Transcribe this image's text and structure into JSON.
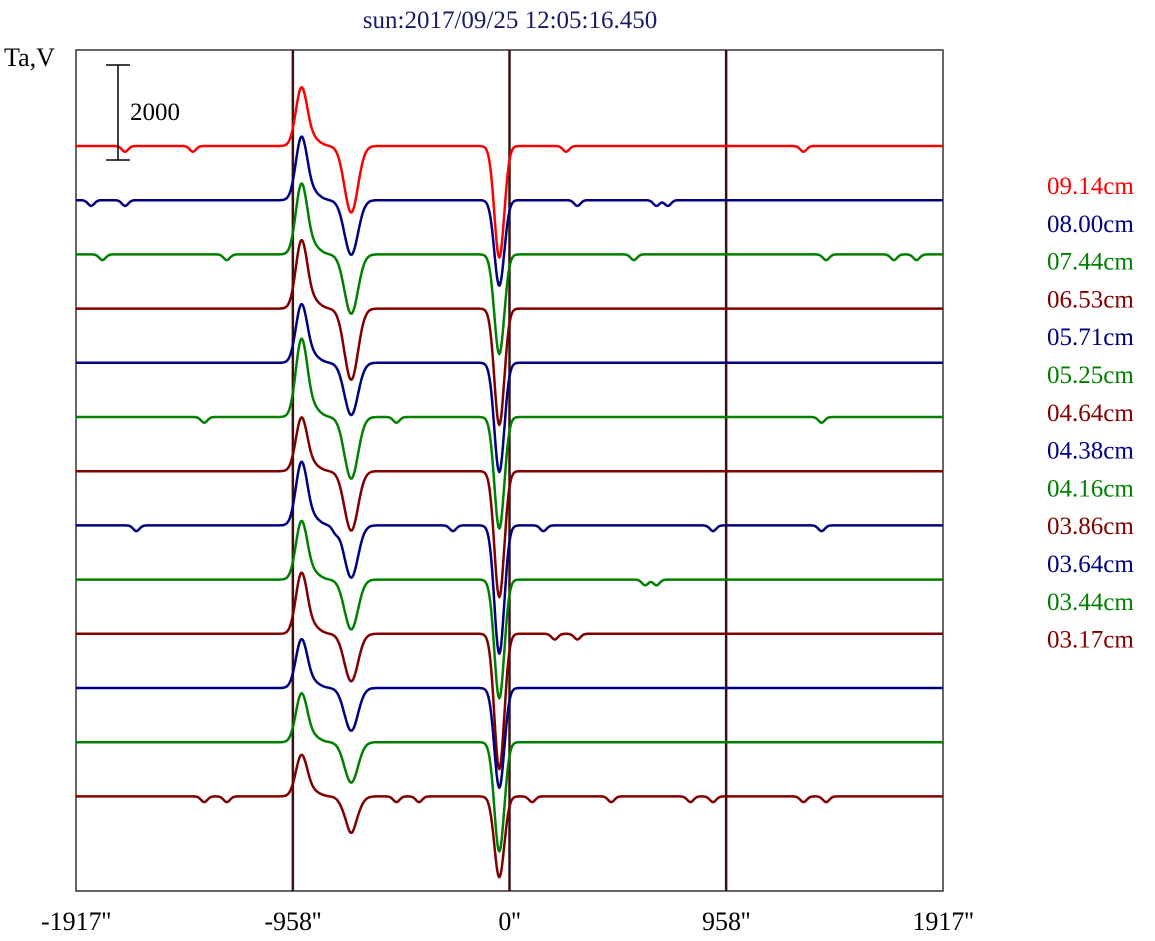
{
  "chart_data": {
    "type": "line",
    "title": "sun:2017/09/25 12:05:16.450",
    "ylabel": "Ta,V",
    "xlabel": "",
    "x_unit": "arcsec",
    "xlim": [
      -1917,
      1917
    ],
    "x_ticks": [
      {
        "value": -1917,
        "label": "-1917''"
      },
      {
        "value": -958,
        "label": "-958''"
      },
      {
        "value": 0,
        "label": "0''"
      },
      {
        "value": 958,
        "label": "958''"
      },
      {
        "value": 1917,
        "label": "1917''"
      }
    ],
    "vertical_lines": [
      -958,
      0,
      958
    ],
    "scale_bar": {
      "value": 2000,
      "label": "2000"
    },
    "grid": false,
    "legend_position": "right",
    "series": [
      {
        "name": "09.14cm",
        "color": "#ff0000",
        "pos_amp": 1200,
        "neg_amp": 1400,
        "center_amp": 2350,
        "bumps": [
          -1700,
          -1400,
          250,
          1300
        ]
      },
      {
        "name": "08.00cm",
        "color": "#000080",
        "pos_amp": 1300,
        "neg_amp": 1150,
        "center_amp": 1800,
        "bumps": [
          -1850,
          -1700,
          300,
          650,
          700
        ]
      },
      {
        "name": "07.44cm",
        "color": "#008000",
        "pos_amp": 1450,
        "neg_amp": 1250,
        "center_amp": 2100,
        "bumps": [
          -1800,
          -1250,
          550,
          1400,
          1700,
          1800
        ]
      },
      {
        "name": "06.53cm",
        "color": "#800000",
        "pos_amp": 1400,
        "neg_amp": 1500,
        "center_amp": 2450,
        "bumps": []
      },
      {
        "name": "05.71cm",
        "color": "#000080",
        "pos_amp": 1200,
        "neg_amp": 1100,
        "center_amp": 2300,
        "bumps": []
      },
      {
        "name": "05.25cm",
        "color": "#008000",
        "pos_amp": 1600,
        "neg_amp": 1300,
        "center_amp": 2350,
        "bumps": [
          -1350,
          -500,
          1380
        ]
      },
      {
        "name": "04.64cm",
        "color": "#800000",
        "pos_amp": 1100,
        "neg_amp": 1250,
        "center_amp": 2650,
        "bumps": []
      },
      {
        "name": "04.38cm",
        "color": "#000080",
        "pos_amp": 1300,
        "neg_amp": 1100,
        "center_amp": 2700,
        "bumps": [
          -1650,
          -770,
          -250,
          150,
          900,
          1380
        ]
      },
      {
        "name": "04.16cm",
        "color": "#008000",
        "pos_amp": 1200,
        "neg_amp": 1050,
        "center_amp": 2500,
        "bumps": [
          600,
          650
        ]
      },
      {
        "name": "03.86cm",
        "color": "#800000",
        "pos_amp": 1250,
        "neg_amp": 1000,
        "center_amp": 2850,
        "bumps": [
          200,
          300
        ]
      },
      {
        "name": "03.64cm",
        "color": "#000080",
        "pos_amp": 1000,
        "neg_amp": 900,
        "center_amp": 2100,
        "bumps": []
      },
      {
        "name": "03.44cm",
        "color": "#008000",
        "pos_amp": 1000,
        "neg_amp": 850,
        "center_amp": 2300,
        "bumps": []
      },
      {
        "name": "03.17cm",
        "color": "#800000",
        "pos_amp": 850,
        "neg_amp": 650,
        "center_amp": 1700,
        "bumps": [
          -1350,
          -1250,
          -700,
          -500,
          -400,
          100,
          450,
          800,
          900,
          1300,
          1400
        ]
      }
    ]
  }
}
